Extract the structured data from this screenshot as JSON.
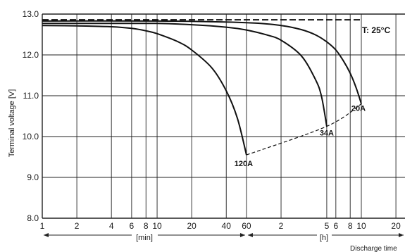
{
  "chart_data": {
    "type": "line",
    "title": "",
    "xlabel": "Discharge time",
    "ylabel": "Terminal voltage [V]",
    "ylim": [
      8.0,
      13.0
    ],
    "yticks": [
      "8.0",
      "9.0",
      "10.0",
      "11.0",
      "12.0",
      "13.0"
    ],
    "xscale": "log",
    "xticks_min": [
      "1",
      "2",
      "4",
      "6",
      "8",
      "10",
      "20",
      "40",
      "60"
    ],
    "xticks_h": [
      "2",
      "5",
      "6",
      "8",
      "10",
      "20"
    ],
    "unit_min": "[min]",
    "unit_h": "[h]",
    "temperature": "T: 25°C",
    "grid": true,
    "series": [
      {
        "name": "120A",
        "x_minutes": [
          1,
          2,
          4,
          6,
          8,
          10,
          15,
          20,
          30,
          40,
          50,
          60
        ],
        "y": [
          12.72,
          12.71,
          12.69,
          12.65,
          12.59,
          12.52,
          12.33,
          12.12,
          11.68,
          11.12,
          10.45,
          9.55
        ]
      },
      {
        "name": "34A",
        "x_minutes": [
          1,
          6,
          10,
          20,
          40,
          60,
          90,
          120,
          180,
          240,
          270,
          300
        ],
        "y": [
          12.77,
          12.77,
          12.77,
          12.74,
          12.68,
          12.61,
          12.49,
          12.36,
          11.98,
          11.39,
          10.98,
          10.25
        ]
      },
      {
        "name": "20A",
        "x_minutes": [
          1,
          10,
          60,
          120,
          180,
          240,
          300,
          360,
          420,
          480,
          540,
          600
        ],
        "y": [
          12.83,
          12.83,
          12.79,
          12.72,
          12.62,
          12.49,
          12.32,
          12.12,
          11.85,
          11.55,
          11.2,
          10.8
        ]
      }
    ],
    "open_circuit_line": {
      "x_minutes": [
        1,
        600
      ],
      "y": [
        12.86,
        12.86
      ]
    },
    "end_voltage_line": {
      "x_minutes": [
        60,
        300,
        600
      ],
      "y": [
        9.55,
        10.25,
        10.8
      ]
    }
  }
}
